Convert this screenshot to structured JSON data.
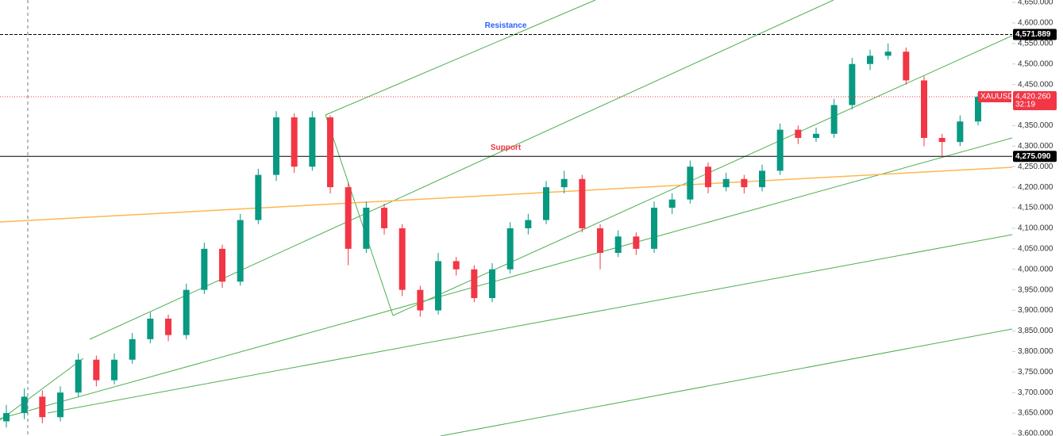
{
  "chart_data": {
    "type": "candlestick",
    "symbol": "XAUUSD",
    "countdown": "32:19",
    "ylim": [
      3600,
      4650
    ],
    "yticks": [
      {
        "value": 3600,
        "label": "3,600.000"
      },
      {
        "value": 3650,
        "label": "3,650.000"
      },
      {
        "value": 3700,
        "label": "3,700.000"
      },
      {
        "value": 3750,
        "label": "3,750.000"
      },
      {
        "value": 3800,
        "label": "3,800.000"
      },
      {
        "value": 3850,
        "label": "3,850.000"
      },
      {
        "value": 3900,
        "label": "3,900.000"
      },
      {
        "value": 3950,
        "label": "3,950.000"
      },
      {
        "value": 4000,
        "label": "4,000.000"
      },
      {
        "value": 4050,
        "label": "4,050.000"
      },
      {
        "value": 4100,
        "label": "4,100.000"
      },
      {
        "value": 4150,
        "label": "4,150.000"
      },
      {
        "value": 4200,
        "label": "4,200.000"
      },
      {
        "value": 4250,
        "label": "4,250.000"
      },
      {
        "value": 4300,
        "label": "4,300.000"
      },
      {
        "value": 4350,
        "label": "4,350.000"
      },
      {
        "value": 4400,
        "label": "4,400.000"
      },
      {
        "value": 4450,
        "label": "4,450.000"
      },
      {
        "value": 4500,
        "label": "4,500.000"
      },
      {
        "value": 4550,
        "label": "4,550.000"
      },
      {
        "value": 4600,
        "label": "4,600.000"
      },
      {
        "value": 4650,
        "label": "4,650.000"
      }
    ],
    "up_color": "#089981",
    "down_color": "#f23645",
    "open": [
      3630,
      3650,
      3690,
      3640,
      3700,
      3780,
      3730,
      3780,
      3830,
      3880,
      3840,
      3950,
      4050,
      3970,
      4120,
      4230,
      4370,
      4250,
      4370,
      4200,
      4050,
      4150,
      4100,
      3950,
      3900,
      4020,
      4000,
      3930,
      4000,
      4100,
      4120,
      4200,
      4220,
      4100,
      4040,
      4080,
      4050,
      4150,
      4170,
      4250,
      4200,
      4220,
      4200,
      4240,
      4340,
      4320,
      4330,
      4400,
      4500,
      4520,
      4530,
      4460,
      4320,
      4310,
      4360
    ],
    "high": [
      3670,
      3710,
      3705,
      3715,
      3795,
      3790,
      3795,
      3845,
      3895,
      3890,
      3965,
      4065,
      4060,
      4135,
      4245,
      4385,
      4380,
      4385,
      4375,
      4210,
      4165,
      4160,
      4110,
      3960,
      4040,
      4030,
      4010,
      4015,
      4115,
      4135,
      4215,
      4240,
      4230,
      4110,
      4095,
      4090,
      4165,
      4185,
      4265,
      4260,
      4235,
      4230,
      4255,
      4355,
      4350,
      4345,
      4415,
      4515,
      4535,
      4550,
      4540,
      4470,
      4330,
      4375,
      4430
    ],
    "low": [
      3615,
      3635,
      3625,
      3630,
      3690,
      3715,
      3720,
      3770,
      3820,
      3825,
      3830,
      3940,
      3955,
      3960,
      4110,
      4215,
      4235,
      4240,
      4185,
      4010,
      4040,
      4085,
      3935,
      3885,
      3890,
      3985,
      3920,
      3920,
      3990,
      4085,
      4110,
      4185,
      4090,
      4000,
      4030,
      4035,
      4040,
      4135,
      4160,
      4185,
      4190,
      4185,
      4190,
      4230,
      4305,
      4310,
      4320,
      4390,
      4485,
      4510,
      4450,
      4300,
      4275,
      4300,
      4350
    ],
    "close": [
      3650,
      3690,
      3640,
      3700,
      3780,
      3730,
      3780,
      3830,
      3880,
      3840,
      3950,
      4050,
      3970,
      4120,
      4230,
      4370,
      4250,
      4370,
      4200,
      4050,
      4150,
      4100,
      3950,
      3900,
      4020,
      4000,
      3930,
      4000,
      4100,
      4120,
      4200,
      4220,
      4100,
      4040,
      4080,
      4050,
      4150,
      4170,
      4250,
      4200,
      4220,
      4200,
      4240,
      4340,
      4320,
      4330,
      4400,
      4500,
      4520,
      4530,
      4460,
      4320,
      4310,
      4360,
      4420
    ],
    "levels": [
      {
        "name": "Resistance",
        "value": 4571.889,
        "label": "4,571.889",
        "color": "#000000"
      },
      {
        "name": "Support",
        "value": 4275.09,
        "label": "4,275.090",
        "color": "#000000"
      }
    ],
    "last_price": {
      "value": 4420.26,
      "label": "4,420.260",
      "color": "#f23645"
    }
  }
}
